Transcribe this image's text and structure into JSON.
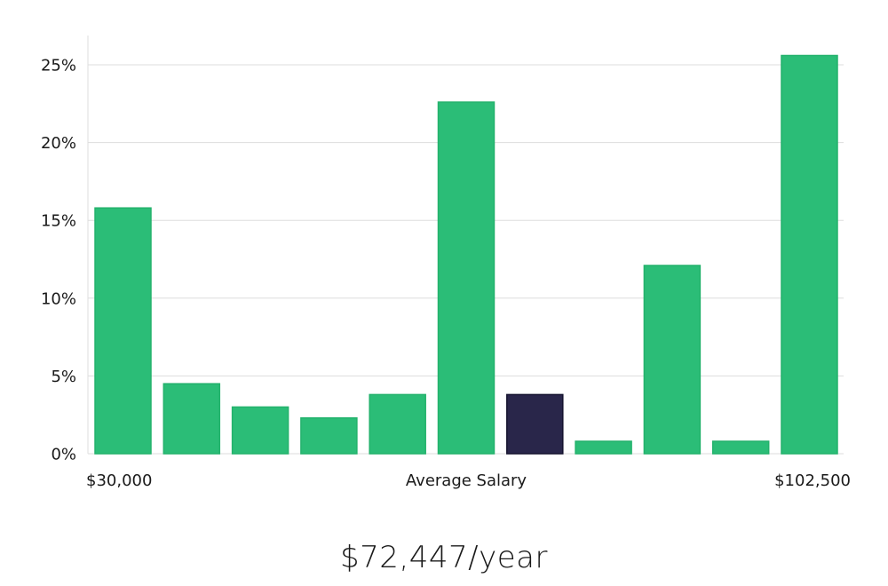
{
  "chart_data": {
    "type": "bar",
    "categories": [
      "1",
      "2",
      "3",
      "4",
      "5",
      "6",
      "7",
      "8",
      "9",
      "10",
      "11"
    ],
    "values": [
      15.8,
      4.5,
      3.0,
      2.3,
      3.8,
      22.6,
      3.8,
      0.8,
      12.1,
      0.8,
      25.6
    ],
    "highlight_index": 6,
    "y_ticks": [
      "0%",
      "5%",
      "10%",
      "15%",
      "20%",
      "25%"
    ],
    "y_tick_values": [
      0,
      5,
      10,
      15,
      20,
      25
    ],
    "ylim": [
      0,
      27
    ],
    "x_labels": {
      "left": "$30,000",
      "center": "Average Salary",
      "right": "$102,500"
    },
    "colors": {
      "bar": "#2bbd77",
      "bar_stroke": "#23b26c",
      "highlight": "#29264a",
      "highlight_stroke": "#15132f"
    },
    "grid": true
  },
  "summary": {
    "salary_text": "$72,447/year"
  }
}
